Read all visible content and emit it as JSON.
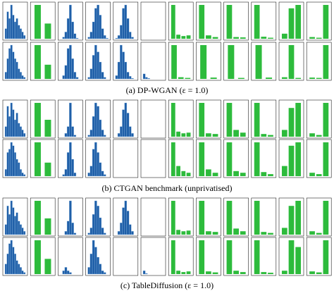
{
  "ylim": [
    0,
    1
  ],
  "hist_color": "#1f5fa8",
  "bar_color": "#2dbb3c",
  "panels": [
    {
      "caption": "(a) DP-WGAN (ε = 1.0)",
      "rows": [
        [
          {
            "type": "hist",
            "values": [
              0.3,
              0.8,
              0.6,
              1,
              0.7,
              0.5,
              0.6,
              0.4,
              0.3,
              0.2,
              0.1
            ]
          },
          {
            "type": "bar",
            "values": [
              1,
              0.45
            ]
          },
          {
            "type": "hist",
            "values": [
              0,
              0.05,
              0.2,
              0.6,
              1,
              0.5,
              0.15,
              0.02,
              0
            ]
          },
          {
            "type": "hist",
            "values": [
              0.05,
              0.2,
              0.5,
              0.9,
              1,
              0.7,
              0.3,
              0.1,
              0.02
            ]
          },
          {
            "type": "hist",
            "values": [
              0.02,
              0.1,
              0.4,
              0.9,
              1,
              0.6,
              0.2,
              0.05,
              0
            ]
          },
          {
            "type": "hist",
            "values": [
              0,
              0,
              0,
              0,
              0,
              0,
              0,
              0,
              0
            ]
          },
          {
            "type": "bar",
            "values": [
              1,
              0.12,
              0.08,
              0.1
            ]
          },
          {
            "type": "bar",
            "values": [
              1,
              0.1,
              0.05
            ]
          },
          {
            "type": "bar",
            "values": [
              1,
              0.05,
              0.04
            ]
          },
          {
            "type": "bar",
            "values": [
              1,
              0.06,
              0.03
            ]
          },
          {
            "type": "bar",
            "values": [
              0.15,
              0.9,
              1
            ]
          },
          {
            "type": "bar",
            "values": [
              0.05,
              0.03,
              1
            ]
          }
        ],
        [
          {
            "type": "hist",
            "values": [
              0.2,
              0.6,
              0.9,
              1,
              0.8,
              0.6,
              0.5,
              0.3,
              0.2,
              0.1,
              0.05
            ]
          },
          {
            "type": "bar",
            "values": [
              1,
              0.42
            ]
          },
          {
            "type": "hist",
            "values": [
              0,
              0.1,
              0.4,
              0.9,
              1,
              0.6,
              0.2,
              0.05,
              0
            ]
          },
          {
            "type": "hist",
            "values": [
              0.05,
              0.3,
              0.7,
              1,
              0.8,
              0.5,
              0.2,
              0.05,
              0
            ]
          },
          {
            "type": "hist",
            "values": [
              0.1,
              0.5,
              1,
              0.8,
              0.5,
              0.2,
              0.08,
              0.02,
              0
            ]
          },
          {
            "type": "hist",
            "values": [
              0.15,
              0.05,
              0.02,
              0,
              0,
              0,
              0,
              0,
              0
            ]
          },
          {
            "type": "bar",
            "values": [
              1,
              0.05,
              0.03
            ]
          },
          {
            "type": "bar",
            "values": [
              1,
              0.04
            ]
          },
          {
            "type": "bar",
            "values": [
              1,
              0.03
            ]
          },
          {
            "type": "bar",
            "values": [
              1,
              0.04
            ]
          },
          {
            "type": "bar",
            "values": [
              0.05,
              1,
              0.03
            ]
          },
          {
            "type": "bar",
            "values": [
              0.04,
              0.03,
              1
            ]
          }
        ]
      ]
    },
    {
      "caption": "(b) CTGAN benchmark (unprivatised)",
      "rows": [
        [
          {
            "type": "hist",
            "values": [
              0.3,
              0.9,
              0.6,
              1,
              0.8,
              0.5,
              0.7,
              0.4,
              0.3,
              0.2,
              0.1
            ]
          },
          {
            "type": "bar",
            "values": [
              1,
              0.5
            ]
          },
          {
            "type": "hist",
            "values": [
              0,
              0,
              0.1,
              0.3,
              1,
              0.3,
              0.05,
              0,
              0
            ]
          },
          {
            "type": "hist",
            "values": [
              0.05,
              0.2,
              0.6,
              1,
              0.9,
              0.5,
              0.2,
              0.05,
              0
            ]
          },
          {
            "type": "hist",
            "values": [
              0,
              0.1,
              0.3,
              0.8,
              1,
              0.7,
              0.3,
              0.1,
              0
            ]
          },
          {
            "type": "hist",
            "values": [
              0,
              0,
              0,
              0,
              0,
              0,
              0,
              0,
              0
            ]
          },
          {
            "type": "bar",
            "values": [
              1,
              0.15,
              0.1,
              0.12
            ]
          },
          {
            "type": "bar",
            "values": [
              1,
              0.1,
              0.08
            ]
          },
          {
            "type": "bar",
            "values": [
              1,
              0.2,
              0.12
            ]
          },
          {
            "type": "bar",
            "values": [
              1,
              0.08,
              0.05
            ]
          },
          {
            "type": "bar",
            "values": [
              0.2,
              0.85,
              1
            ]
          },
          {
            "type": "bar",
            "values": [
              0.1,
              0.05,
              1
            ]
          }
        ],
        [
          {
            "type": "hist",
            "values": [
              0.2,
              0.7,
              0.8,
              1,
              0.9,
              0.7,
              0.5,
              0.4,
              0.2,
              0.1,
              0.05
            ]
          },
          {
            "type": "bar",
            "values": [
              1,
              0.4
            ]
          },
          {
            "type": "hist",
            "values": [
              0,
              0.05,
              0.2,
              0.7,
              1,
              0.5,
              0.1,
              0,
              0
            ]
          },
          {
            "type": "hist",
            "values": [
              0.1,
              0.3,
              0.8,
              1,
              0.7,
              0.4,
              0.15,
              0.05,
              0
            ]
          },
          {
            "type": "hist",
            "values": [
              0,
              0,
              0,
              0,
              0,
              0,
              0,
              0,
              0
            ]
          },
          {
            "type": "hist",
            "values": [
              0,
              0,
              0,
              0,
              0,
              0,
              0,
              0,
              0
            ]
          },
          {
            "type": "bar",
            "values": [
              1,
              0.3,
              0.15,
              0.1
            ]
          },
          {
            "type": "bar",
            "values": [
              1,
              0.2,
              0.1
            ]
          },
          {
            "type": "bar",
            "values": [
              1,
              0.15,
              0.1
            ]
          },
          {
            "type": "bar",
            "values": [
              1,
              0.12,
              0.06
            ]
          },
          {
            "type": "bar",
            "values": [
              0.3,
              0.9,
              1
            ]
          },
          {
            "type": "bar",
            "values": [
              0.1,
              0.06,
              1
            ]
          }
        ]
      ]
    },
    {
      "caption": "(c) TableDiffusion (ε = 1.0)",
      "rows": [
        [
          {
            "type": "hist",
            "values": [
              0.3,
              0.85,
              0.6,
              1,
              0.8,
              0.55,
              0.65,
              0.4,
              0.3,
              0.2,
              0.1
            ]
          },
          {
            "type": "bar",
            "values": [
              1,
              0.48
            ]
          },
          {
            "type": "hist",
            "values": [
              0,
              0,
              0.1,
              0.4,
              1,
              0.35,
              0.05,
              0,
              0
            ]
          },
          {
            "type": "hist",
            "values": [
              0.05,
              0.2,
              0.6,
              1,
              0.85,
              0.5,
              0.2,
              0.05,
              0
            ]
          },
          {
            "type": "hist",
            "values": [
              0,
              0.1,
              0.35,
              0.8,
              1,
              0.7,
              0.3,
              0.1,
              0
            ]
          },
          {
            "type": "hist",
            "values": [
              0,
              0,
              0,
              0,
              0,
              0,
              0,
              0,
              0
            ]
          },
          {
            "type": "bar",
            "values": [
              1,
              0.14,
              0.1,
              0.12
            ]
          },
          {
            "type": "bar",
            "values": [
              1,
              0.1,
              0.08
            ]
          },
          {
            "type": "bar",
            "values": [
              1,
              0.18,
              0.1
            ]
          },
          {
            "type": "bar",
            "values": [
              1,
              0.08,
              0.05
            ]
          },
          {
            "type": "bar",
            "values": [
              0.2,
              0.85,
              1
            ]
          },
          {
            "type": "bar",
            "values": [
              0.1,
              0.05,
              1
            ]
          }
        ],
        [
          {
            "type": "hist",
            "values": [
              0.3,
              0.6,
              0.9,
              1,
              0.8,
              0.6,
              0.4,
              0.3,
              0.2,
              0.1,
              0.05
            ]
          },
          {
            "type": "bar",
            "values": [
              1,
              0.45
            ]
          },
          {
            "type": "hist",
            "values": [
              0,
              0.1,
              0.2,
              0.1,
              0.05,
              0,
              0,
              0,
              0
            ]
          },
          {
            "type": "hist",
            "values": [
              0.2,
              0.6,
              1,
              0.8,
              0.5,
              0.3,
              0.1,
              0.05,
              0
            ]
          },
          {
            "type": "hist",
            "values": [
              0,
              0,
              0,
              0,
              0,
              0,
              0,
              0,
              0
            ]
          },
          {
            "type": "hist",
            "values": [
              0.1,
              0.02,
              0,
              0,
              0,
              0,
              0,
              0,
              0
            ]
          },
          {
            "type": "bar",
            "values": [
              1,
              0.1,
              0.06,
              0.08
            ]
          },
          {
            "type": "bar",
            "values": [
              1,
              0.08,
              0.05
            ]
          },
          {
            "type": "bar",
            "values": [
              1,
              0.1,
              0.06
            ]
          },
          {
            "type": "bar",
            "values": [
              1,
              0.06,
              0.04
            ]
          },
          {
            "type": "bar",
            "values": [
              0.1,
              1,
              0.8
            ]
          },
          {
            "type": "bar",
            "values": [
              0.08,
              0.05,
              1
            ]
          }
        ]
      ]
    }
  ]
}
